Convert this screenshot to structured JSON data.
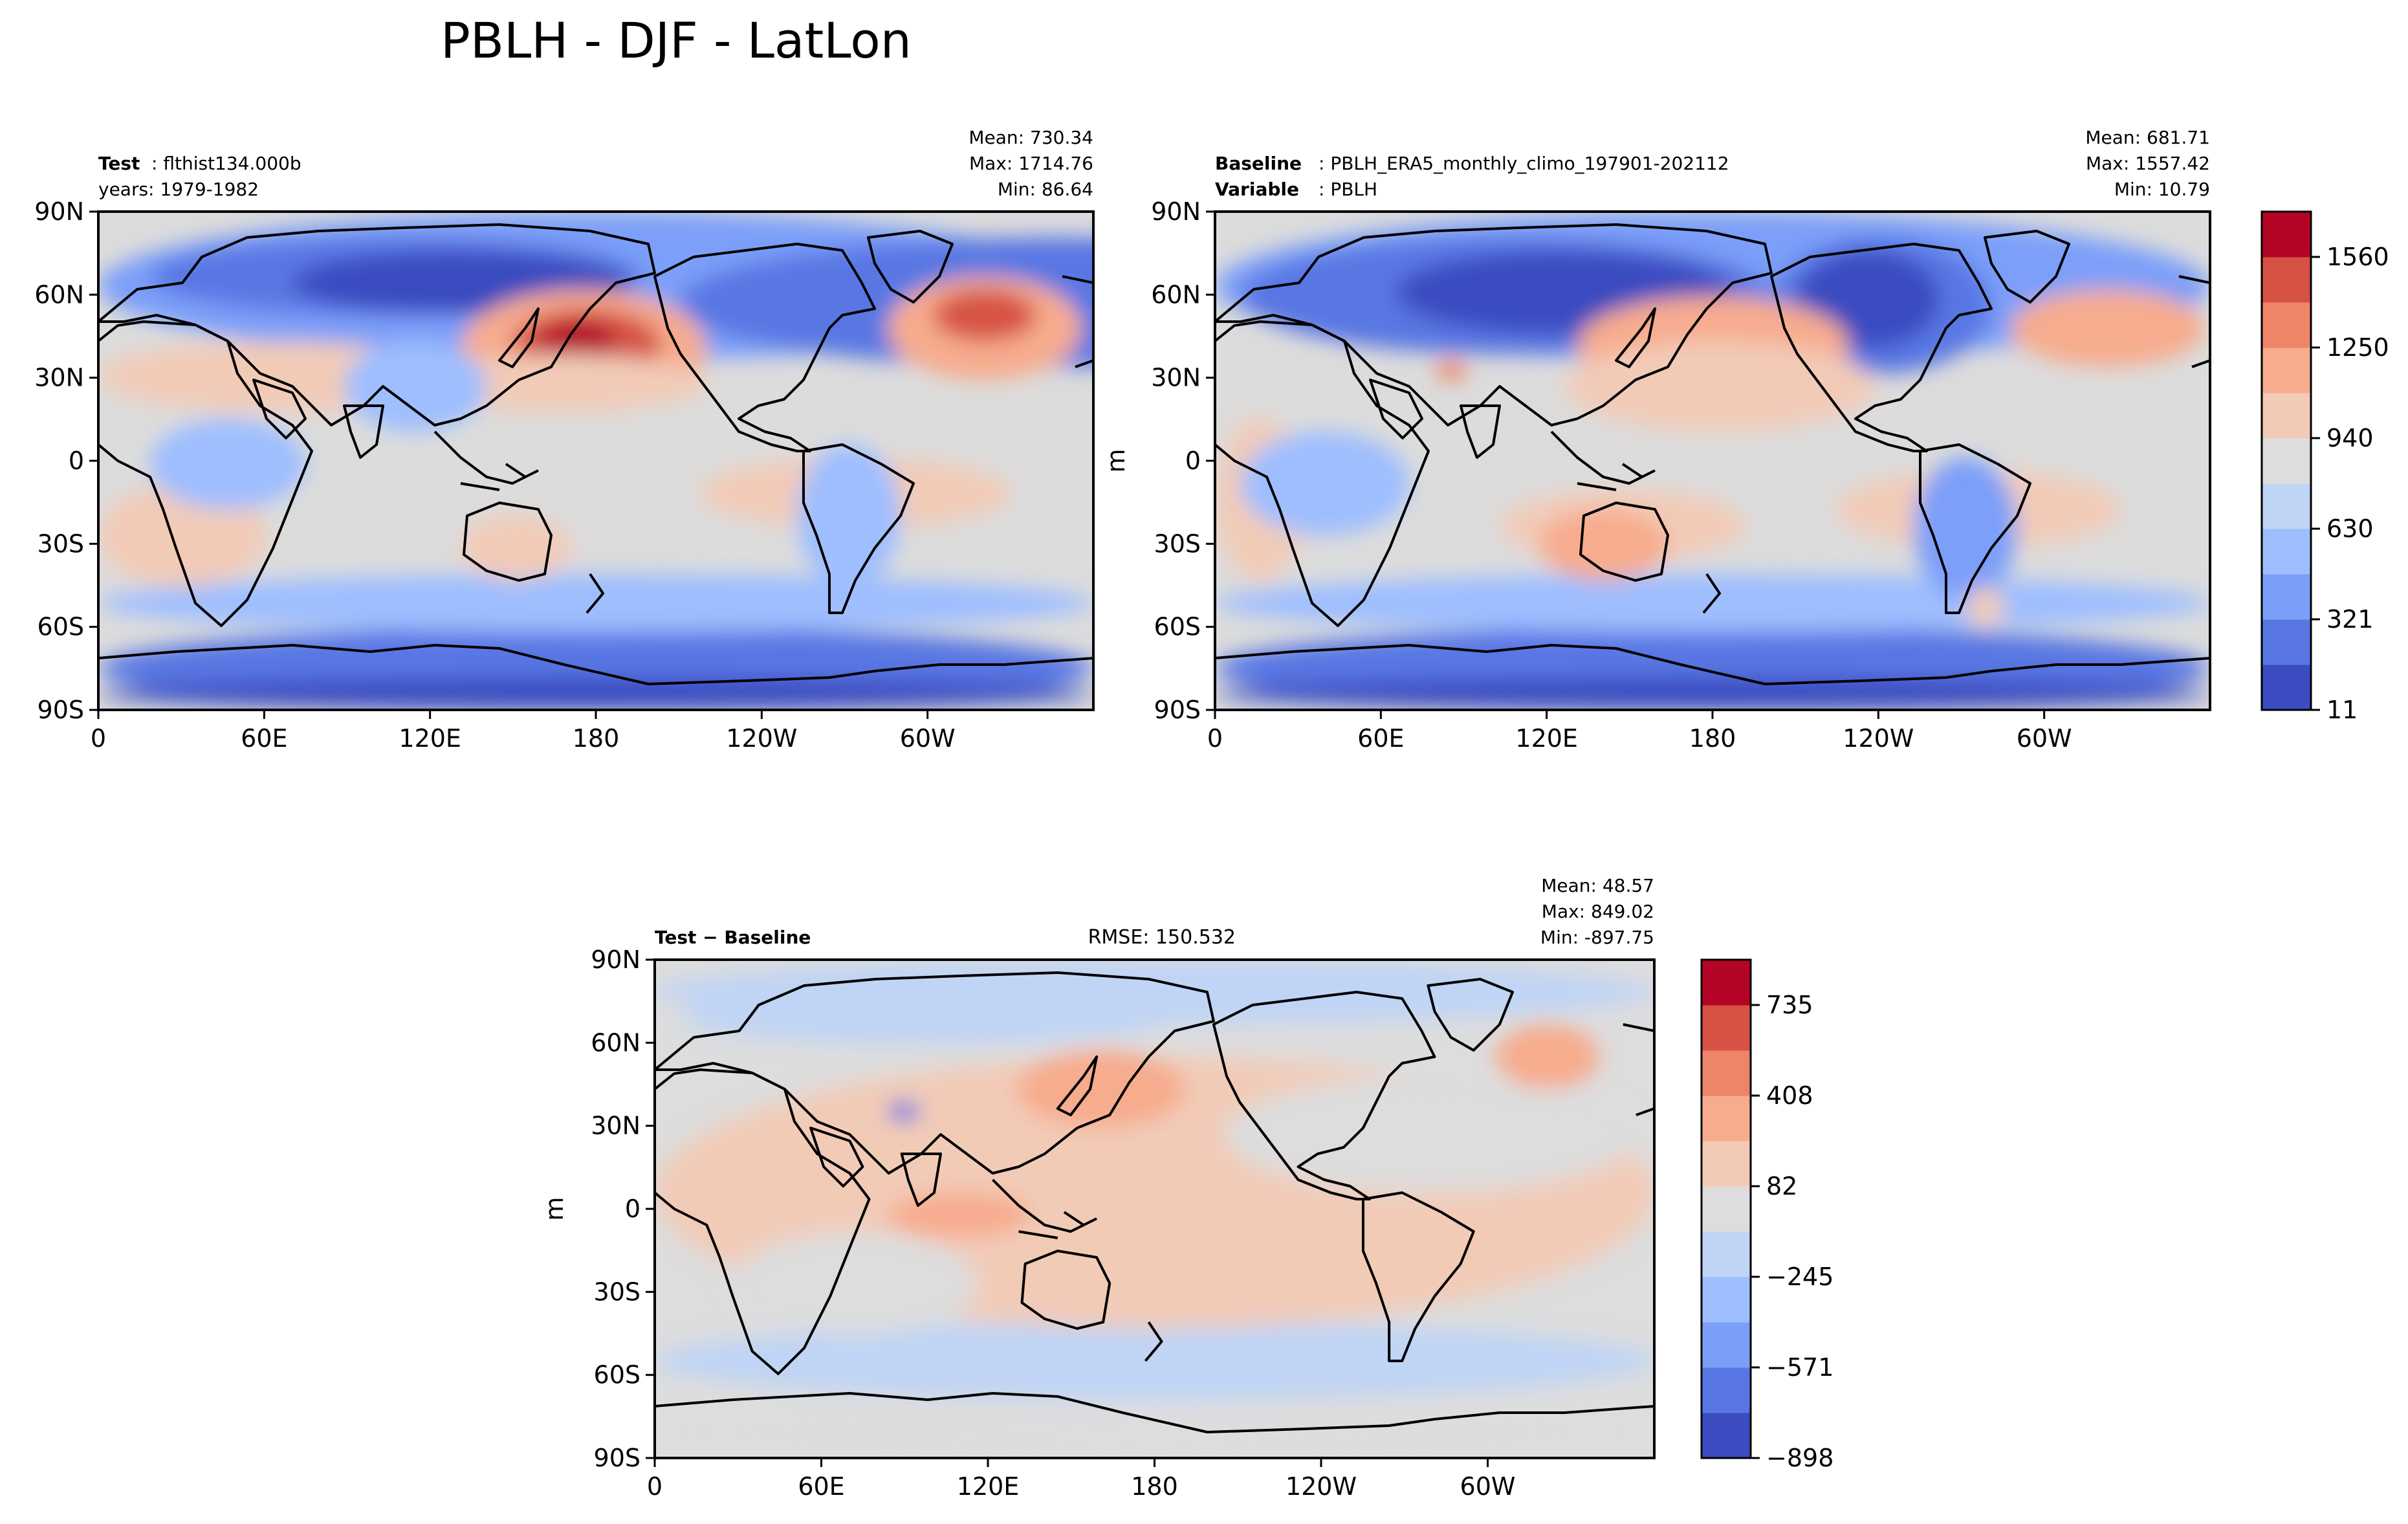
{
  "figure": {
    "title": "PBLH - DJF - LatLon"
  },
  "chart_data": [
    {
      "type": "heatmap",
      "panel": "test",
      "info_left_bold_1": "Test",
      "info_left_text_1": ": flthist134.000b",
      "info_left_line_2": "years: 1979-1982",
      "stats": {
        "mean": "Mean: 730.34",
        "max": "Max: 1714.76",
        "min": "Min: 86.64"
      },
      "xticks": [
        "0",
        "60E",
        "120E",
        "180",
        "120W",
        "60W"
      ],
      "yticks": [
        "90N",
        "60N",
        "30N",
        "0",
        "30S",
        "60S",
        "90S"
      ],
      "xlim": [
        0,
        360
      ],
      "ylim": [
        -90,
        90
      ],
      "values_summary": {
        "mean": 730.34,
        "max": 1714.76,
        "min": 86.64
      }
    },
    {
      "type": "heatmap",
      "panel": "baseline",
      "info_left_bold_1": "Baseline",
      "info_left_text_1": ": PBLH_ERA5_monthly_climo_197901-202112",
      "info_left_bold_2": "Variable",
      "info_left_text_2": ": PBLH",
      "stats": {
        "mean": "Mean: 681.71",
        "max": "Max: 1557.42",
        "min": "Min: 10.79"
      },
      "ylabel": "m",
      "xticks": [
        "0",
        "60E",
        "120E",
        "180",
        "120W",
        "60W"
      ],
      "yticks": [
        "90N",
        "60N",
        "30N",
        "0",
        "30S",
        "60S",
        "90S"
      ],
      "xlim": [
        0,
        360
      ],
      "ylim": [
        -90,
        90
      ],
      "values_summary": {
        "mean": 681.71,
        "max": 1557.42,
        "min": 10.79
      },
      "colorbar": {
        "ticks": [
          "1560",
          "1250",
          "940",
          "630",
          "321",
          "11"
        ],
        "range": [
          11,
          1714.76
        ],
        "levels": 11
      }
    },
    {
      "type": "heatmap",
      "panel": "difference",
      "info_left_bold_1": "Test − Baseline",
      "rmse": "RMSE: 150.532",
      "stats": {
        "mean": "Mean: 48.57",
        "max": "Max: 849.02",
        "min": "Min: -897.75"
      },
      "ylabel": "m",
      "xticks": [
        "0",
        "60E",
        "120E",
        "180",
        "120W",
        "60W"
      ],
      "yticks": [
        "90N",
        "60N",
        "30N",
        "0",
        "30S",
        "60S",
        "90S"
      ],
      "xlim": [
        0,
        360
      ],
      "ylim": [
        -90,
        90
      ],
      "values_summary": {
        "mean": 48.57,
        "max": 849.02,
        "min": -897.75,
        "rmse": 150.532
      },
      "colorbar": {
        "ticks": [
          "735",
          "408",
          "82",
          "−245",
          "−571",
          "−898"
        ],
        "range": [
          -898,
          900
        ],
        "levels": 11
      }
    }
  ],
  "palette": [
    "#3b4cc0",
    "#5977e3",
    "#7b9ff9",
    "#9ebeff",
    "#c0d4f5",
    "#dddddd",
    "#f2cbb7",
    "#f7ac8e",
    "#ee8468",
    "#d65244",
    "#b40426"
  ]
}
